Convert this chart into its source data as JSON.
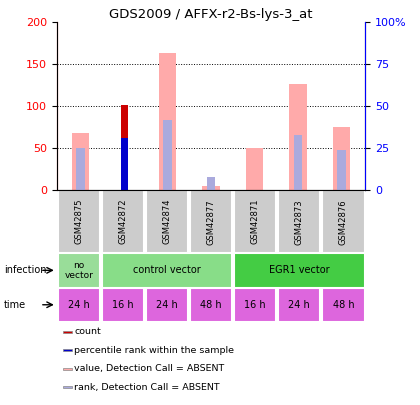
{
  "title": "GDS2009 / AFFX-r2-Bs-lys-3_at",
  "samples": [
    "GSM42875",
    "GSM42872",
    "GSM42874",
    "GSM42877",
    "GSM42871",
    "GSM42873",
    "GSM42876"
  ],
  "value_absent": [
    68,
    0,
    163,
    5,
    50,
    127,
    75
  ],
  "rank_absent_pct": [
    25,
    0,
    42,
    8,
    0,
    33,
    24
  ],
  "count_present": [
    0,
    101,
    0,
    0,
    0,
    0,
    0
  ],
  "rank_present_pct": [
    0,
    31,
    0,
    0,
    0,
    0,
    0
  ],
  "ylim_left": [
    0,
    200
  ],
  "ylim_right": [
    0,
    100
  ],
  "yticks_left": [
    0,
    50,
    100,
    150,
    200
  ],
  "yticks_right": [
    0,
    25,
    50,
    75,
    100
  ],
  "time_labels": [
    "24 h",
    "16 h",
    "24 h",
    "48 h",
    "16 h",
    "24 h",
    "48 h"
  ],
  "time_color": "#dd66dd",
  "gsm_bg_color": "#cccccc",
  "color_count": "#cc0000",
  "color_rank_present": "#0000cc",
  "color_value_absent": "#ffaaaa",
  "color_rank_absent": "#aaaadd",
  "bar_width": 0.4,
  "infection_no_vector_color": "#99dd99",
  "infection_control_color": "#88dd88",
  "infection_egr1_color": "#44cc44"
}
